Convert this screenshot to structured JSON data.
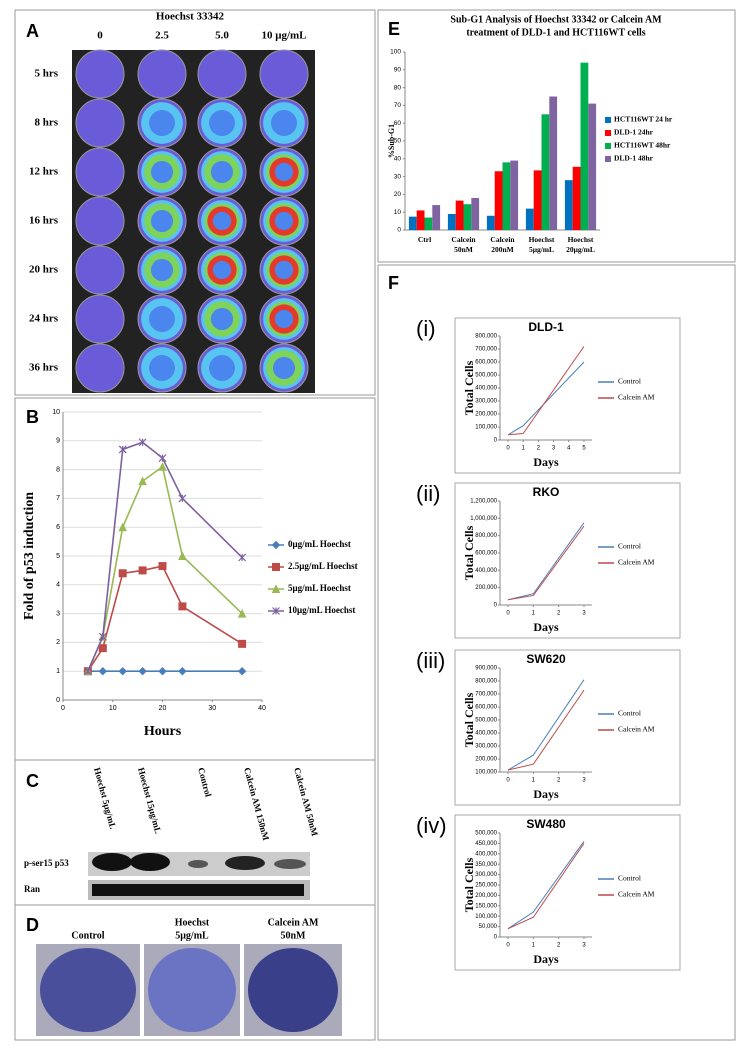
{
  "panel_a": {
    "label": "A",
    "header": "Hoechst 33342",
    "columns": [
      "0",
      "2.5",
      "5.0",
      "10 μg/mL"
    ],
    "rows": [
      "5 hrs",
      "8 hrs",
      "12 hrs",
      "16 hrs",
      "20 hrs",
      "24 hrs",
      "36 hrs"
    ]
  },
  "panel_c": {
    "label": "C",
    "columns": [
      "Hoechst 5μg/mL",
      "Hoechst 15μg/mL",
      "Control",
      "Calcein AM 150nM",
      "Calcein AM 50nM"
    ],
    "rows": [
      "p-ser15 p53",
      "Ran"
    ]
  },
  "panel_d": {
    "label": "D",
    "columns": [
      [
        "Control"
      ],
      [
        "Hoechst",
        "5μg/mL"
      ],
      [
        "Calcein AM",
        "50nM"
      ]
    ]
  },
  "panel_f": {
    "label": "F"
  },
  "chart_data": [
    {
      "type": "line",
      "panel": "B",
      "x_label": "Hours",
      "y_label": "Fold of p53 induction",
      "grid": true,
      "x": [
        5,
        8,
        12,
        16,
        20,
        24,
        36
      ],
      "xlim": [
        0,
        40
      ],
      "xticks": [
        0,
        10,
        20,
        30,
        40
      ],
      "ylim": [
        0,
        10
      ],
      "yticks": [
        0,
        1,
        2,
        3,
        4,
        5,
        6,
        7,
        8,
        9,
        10
      ],
      "series": [
        {
          "name": "0μg/mL Hoechst",
          "color": "#4a7ebb",
          "marker": "diamond",
          "values": [
            1,
            1,
            1,
            1,
            1,
            1,
            1
          ]
        },
        {
          "name": "2.5μg/mL Hoechst",
          "color": "#be4b48",
          "marker": "square",
          "values": [
            1,
            1.8,
            4.4,
            4.5,
            4.65,
            3.25,
            1.95
          ]
        },
        {
          "name": "5μg/mL Hoechst",
          "color": "#98b954",
          "marker": "triangle",
          "values": [
            1,
            2.2,
            6,
            7.6,
            8.1,
            5,
            3
          ]
        },
        {
          "name": "10μg/mL Hoechst",
          "color": "#7d60a0",
          "marker": "star",
          "values": [
            1,
            2.2,
            8.7,
            8.95,
            8.4,
            7,
            4.95
          ]
        }
      ]
    },
    {
      "type": "bar",
      "panel": "E",
      "title": [
        "Sub-G1 Analysis of Hoechst 33342 or Calcein AM",
        "treatment of DLD-1 and HCT116WT cells"
      ],
      "y_label": "%Sub-G1",
      "categories": [
        "Ctrl",
        "Calcein 50nM",
        "Calcein 200nM",
        "Hoechst 5μg/mL",
        "Hoechst 20μg/mL"
      ],
      "ylim": [
        0,
        100
      ],
      "yticks": [
        0,
        10,
        20,
        30,
        40,
        50,
        60,
        70,
        80,
        90,
        100
      ],
      "series": [
        {
          "name": "HCT116WT 24 hr",
          "color": "#0070c0",
          "values": [
            7.5,
            9,
            8,
            12,
            28
          ]
        },
        {
          "name": "DLD-1 24hr",
          "color": "#ff0000",
          "values": [
            11,
            16.5,
            33,
            33.5,
            35.5
          ]
        },
        {
          "name": "HCT116WT 48hr",
          "color": "#00b050",
          "values": [
            7,
            14.5,
            38,
            65,
            94
          ]
        },
        {
          "name": "DLD-1 48hr",
          "color": "#8064a2",
          "values": [
            14,
            18,
            39,
            75,
            71
          ]
        }
      ]
    },
    {
      "type": "line",
      "panel": "(i)",
      "title": "DLD-1",
      "x_label": "Days",
      "y_label": "Total Cells",
      "x": [
        0,
        1,
        5
      ],
      "xlim": [
        0,
        5
      ],
      "xticks": [
        0,
        1,
        2,
        3,
        4,
        5
      ],
      "ylim": [
        0,
        800000
      ],
      "yticks": [
        0,
        {
          "value": 100000,
          "label": "100,000"
        },
        {
          "value": 200000,
          "label": "200,000"
        },
        {
          "value": 300000,
          "label": "300,000"
        },
        {
          "value": 400000,
          "label": "400,000"
        },
        {
          "value": 500000,
          "label": "500,000"
        },
        {
          "value": 600000,
          "label": "600,000"
        },
        {
          "value": 700000,
          "label": "700,000"
        },
        {
          "value": 800000,
          "label": "800,000"
        }
      ],
      "series": [
        {
          "name": "Control",
          "color": "#4a7ebb",
          "values": [
            40000,
            110000,
            600000
          ]
        },
        {
          "name": "Calcein AM",
          "color": "#be4b48",
          "values": [
            40000,
            50000,
            720000
          ]
        }
      ]
    },
    {
      "type": "line",
      "panel": "(ii)",
      "title": "RKO",
      "x_label": "Days",
      "y_label": "Total Cells",
      "x": [
        0,
        1,
        3
      ],
      "xlim": [
        0,
        3
      ],
      "xticks": [
        0,
        1,
        2,
        3
      ],
      "ylim": [
        0,
        1200000
      ],
      "yticks": [
        0,
        {
          "value": 200000,
          "label": "200,000"
        },
        {
          "value": 400000,
          "label": "400,000"
        },
        {
          "value": 600000,
          "label": "600,000"
        },
        {
          "value": 800000,
          "label": "800,000"
        },
        {
          "value": 1000000,
          "label": "1,000,000"
        },
        {
          "value": 1200000,
          "label": "1,200,000"
        }
      ],
      "series": [
        {
          "name": "Control",
          "color": "#4a7ebb",
          "values": [
            60000,
            130000,
            950000
          ]
        },
        {
          "name": "Calcein AM",
          "color": "#be4b48",
          "values": [
            60000,
            110000,
            910000
          ]
        }
      ]
    },
    {
      "type": "line",
      "panel": "(iii)",
      "title": "SW620",
      "x_label": "Days",
      "y_label": "Total Cells",
      "x": [
        0,
        1,
        3
      ],
      "xlim": [
        0,
        3
      ],
      "xticks": [
        0,
        1,
        2,
        3
      ],
      "ylim": [
        100000,
        900000
      ],
      "yticks": [
        {
          "value": 100000,
          "label": "100,000"
        },
        {
          "value": 200000,
          "label": "200,000"
        },
        {
          "value": 300000,
          "label": "300,000"
        },
        {
          "value": 400000,
          "label": "400,000"
        },
        {
          "value": 500000,
          "label": "500,000"
        },
        {
          "value": 600000,
          "label": "600,000"
        },
        {
          "value": 700000,
          "label": "700,000"
        },
        {
          "value": 800000,
          "label": "800,000"
        },
        {
          "value": 900000,
          "label": "900,000"
        }
      ],
      "series": [
        {
          "name": "Control",
          "color": "#4a7ebb",
          "values": [
            115000,
            230000,
            810000
          ]
        },
        {
          "name": "Calcein AM",
          "color": "#be4b48",
          "values": [
            115000,
            160000,
            730000
          ]
        }
      ]
    },
    {
      "type": "line",
      "panel": "(iv)",
      "title": "SW480",
      "x_label": "Days",
      "y_label": "Total Cells",
      "x": [
        0,
        1,
        3
      ],
      "xlim": [
        0,
        3
      ],
      "xticks": [
        0,
        1,
        2,
        3
      ],
      "ylim": [
        0,
        500000
      ],
      "yticks": [
        0,
        {
          "value": 50000,
          "label": "50,000"
        },
        {
          "value": 100000,
          "label": "100,000"
        },
        {
          "value": 150000,
          "label": "150,000"
        },
        {
          "value": 200000,
          "label": "200,000"
        },
        {
          "value": 250000,
          "label": "250,000"
        },
        {
          "value": 300000,
          "label": "300,000"
        },
        {
          "value": 350000,
          "label": "350,000"
        },
        {
          "value": 400000,
          "label": "400,000"
        },
        {
          "value": 450000,
          "label": "450,000"
        },
        {
          "value": 500000,
          "label": "500,000"
        }
      ],
      "series": [
        {
          "name": "Control",
          "color": "#4a7ebb",
          "values": [
            40000,
            120000,
            460000
          ]
        },
        {
          "name": "Calcein AM",
          "color": "#be4b48",
          "values": [
            40000,
            95000,
            450000
          ]
        }
      ]
    }
  ]
}
